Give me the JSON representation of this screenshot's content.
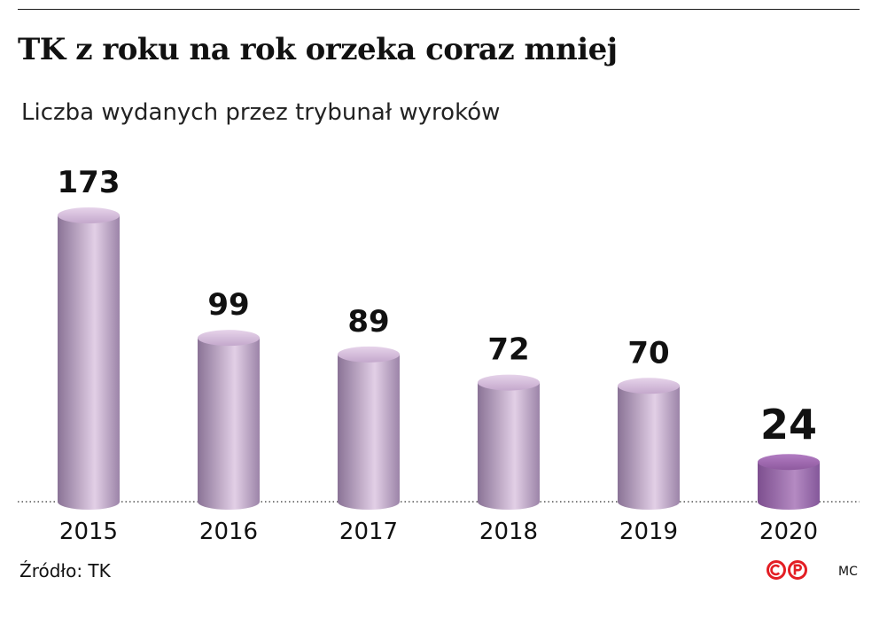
{
  "header": {
    "title": "TK z roku na rok orzeka coraz mniej",
    "subtitle": "Liczba wydanych przez trybunał wyroków"
  },
  "chart_data": {
    "type": "bar",
    "categories": [
      "2015",
      "2016",
      "2017",
      "2018",
      "2019",
      "2020"
    ],
    "values": [
      173,
      99,
      89,
      72,
      70,
      24
    ],
    "highlight_index": 5,
    "title": "TK z roku na rok orzeka coraz mniej",
    "subtitle": "Liczba wydanych przez trybunał wyroków",
    "ylim": [
      0,
      173
    ],
    "grid": false,
    "legend": "none",
    "colors": {
      "bar_dark": "#8a7396",
      "bar_light": "#e2cfe6",
      "top_light": "#e6d3ea",
      "top_dark": "#c4a8cc",
      "highlight_dark": "#7d4f8f",
      "highlight_light": "#b48ac2",
      "highlight_top_light": "#b27cc2",
      "highlight_top_dark": "#8e5a9f",
      "baseline": "#555555"
    }
  },
  "footer": {
    "source": "Źródło: TK",
    "author": "MC",
    "logo_color": "#e31e24"
  }
}
